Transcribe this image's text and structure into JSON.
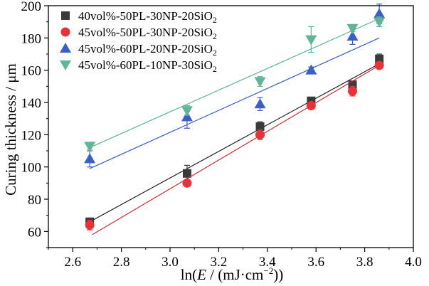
{
  "chart_data": {
    "type": "scatter",
    "xlabel_parts": [
      "ln(",
      "E",
      " / (mJ·cm",
      "−2",
      "))"
    ],
    "ylabel": "Curing thickness / μm",
    "xlim": [
      2.5,
      4.0
    ],
    "ylim": [
      50,
      200
    ],
    "xticks": [
      2.6,
      2.8,
      3.0,
      3.2,
      3.4,
      3.6,
      3.8,
      4.0
    ],
    "xtick_labels": [
      "2.6",
      "2.8",
      "3.0",
      "3.2",
      "3.4",
      "3.6",
      "3.8",
      "4.0"
    ],
    "yticks": [
      60,
      80,
      100,
      120,
      140,
      160,
      180,
      200
    ],
    "ytick_labels": [
      "60",
      "80",
      "100",
      "120",
      "140",
      "160",
      "180",
      "200"
    ],
    "legend_position": "top-left",
    "series": [
      {
        "name_main": "40vol%-50PL-30NP-20SiO",
        "name_sub": "2",
        "marker": "square",
        "color": "#3a3a3a",
        "line_color": "#222222",
        "x": [
          2.67,
          3.07,
          3.37,
          3.58,
          3.75,
          3.86
        ],
        "y": [
          66,
          96,
          125,
          141,
          151,
          167
        ],
        "err": [
          2,
          5,
          3,
          2,
          2,
          3
        ],
        "fit": [
          [
            2.67,
            66
          ],
          [
            3.86,
            164
          ]
        ]
      },
      {
        "name_main": "45vol%-50PL-30NP-20SiO",
        "name_sub": "2",
        "marker": "circle",
        "color": "#e8323a",
        "line_color": "#d82a2f",
        "x": [
          2.67,
          3.07,
          3.37,
          3.58,
          3.75,
          3.86
        ],
        "y": [
          64,
          90,
          120,
          138,
          147,
          163
        ],
        "err": [
          3,
          2,
          3,
          2,
          3,
          2
        ],
        "fit": [
          [
            2.68,
            58
          ],
          [
            3.86,
            163
          ]
        ]
      },
      {
        "name_main": "45vol%-60PL-20NP-20SiO",
        "name_sub": "2",
        "marker": "triangle-up",
        "color": "#3a5fc8",
        "line_color": "#3a5fc8",
        "x": [
          2.67,
          3.07,
          3.37,
          3.58,
          3.75,
          3.86
        ],
        "y": [
          105,
          131,
          139,
          160,
          181,
          195
        ],
        "err": [
          5,
          7,
          4,
          2,
          5,
          6
        ],
        "fit": [
          [
            2.67,
            99
          ],
          [
            3.86,
            180
          ]
        ]
      },
      {
        "name_main": "45vol%-60PL-10NP-30SiO",
        "name_sub": "2",
        "marker": "triangle-down",
        "color": "#5fb595",
        "line_color": "#5fb595",
        "x": [
          2.67,
          3.07,
          3.37,
          3.58,
          3.75,
          3.86
        ],
        "y": [
          113,
          135,
          153,
          179,
          186,
          190
        ],
        "err": [
          2,
          3,
          3,
          8,
          2,
          3
        ],
        "fit": [
          [
            2.67,
            112
          ],
          [
            3.86,
            192
          ]
        ]
      }
    ]
  }
}
